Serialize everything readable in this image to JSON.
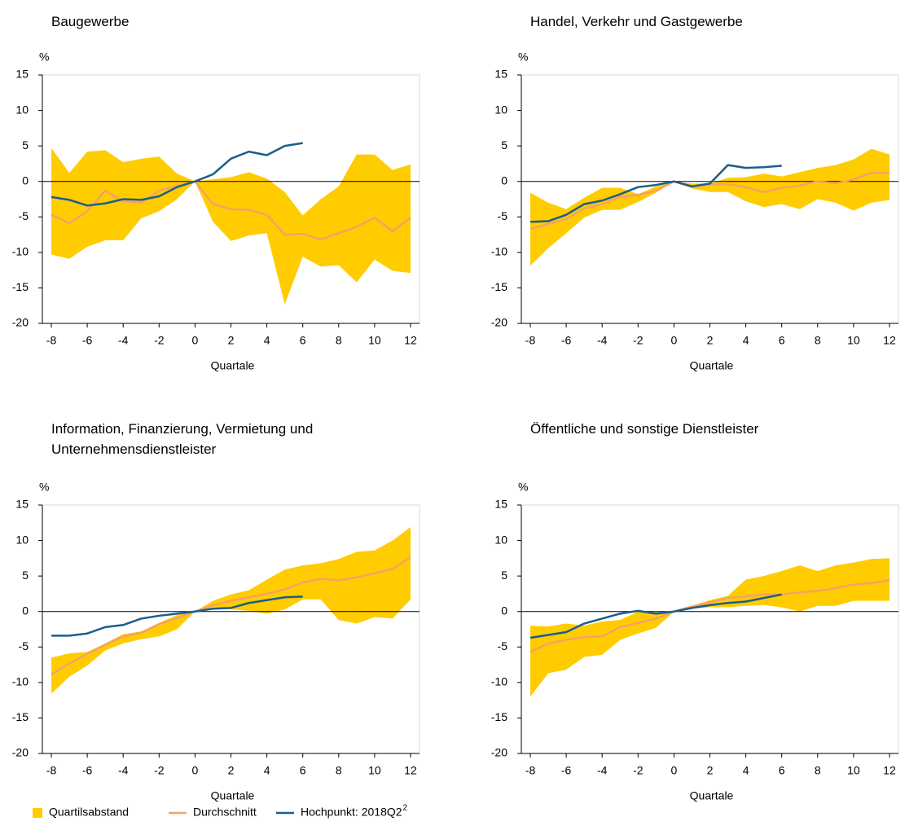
{
  "chart_data": [
    {
      "type": "band-line",
      "title": "Baugewerbe",
      "y_unit": "%",
      "xlabel": "Quartale",
      "x": [
        -8,
        -7,
        -6,
        -5,
        -4,
        -3,
        -2,
        -1,
        0,
        1,
        2,
        3,
        4,
        5,
        6,
        7,
        8,
        9,
        10,
        11,
        12
      ],
      "band": {
        "color": "#ffcc00",
        "upper": [
          4.7,
          1.2,
          4.2,
          4.4,
          2.7,
          3.2,
          3.5,
          1.1,
          0,
          0.3,
          0.6,
          1.3,
          0.4,
          -1.5,
          -4.8,
          -2.5,
          -0.7,
          3.8,
          3.8,
          1.6,
          2.4
        ],
        "lower": [
          -10.3,
          -10.9,
          -9.2,
          -8.3,
          -8.3,
          -5.2,
          -4.2,
          -2.5,
          0,
          -5.7,
          -8.4,
          -7.6,
          -7.3,
          -17.3,
          -10.6,
          -12,
          -11.8,
          -14.2,
          -11,
          -12.6,
          -12.9
        ]
      },
      "series": [
        {
          "color": "#f5a264",
          "values": [
            -4.7,
            -5.9,
            -4.2,
            -1.3,
            -2.8,
            -3.0,
            -1.3,
            -0.6,
            0,
            -3.2,
            -3.9,
            -4.0,
            -4.7,
            -7.5,
            -7.4,
            -8.2,
            -7.3,
            -6.4,
            -5.1,
            -7.0,
            -5.1
          ]
        },
        {
          "color": "#1b5e8c",
          "values": [
            -2.2,
            -2.6,
            -3.4,
            -3.1,
            -2.5,
            -2.6,
            -2.1,
            -0.8,
            0,
            1.0,
            3.2,
            4.2,
            3.7,
            5.0,
            5.4,
            null,
            null,
            null,
            null,
            null,
            null
          ]
        }
      ],
      "xlim": [
        -8.5,
        12.5
      ],
      "xticks": [
        -8,
        -6,
        -4,
        -2,
        0,
        2,
        4,
        6,
        8,
        10,
        12
      ],
      "ylim": [
        -20,
        15
      ],
      "yticks": [
        -20,
        -15,
        -10,
        -5,
        0,
        5,
        10,
        15
      ],
      "zero_line": true
    },
    {
      "type": "band-line",
      "title": "Handel, Verkehr und Gastgewerbe",
      "y_unit": "%",
      "xlabel": "Quartale",
      "x": [
        -8,
        -7,
        -6,
        -5,
        -4,
        -3,
        -2,
        -1,
        0,
        1,
        2,
        3,
        4,
        5,
        6,
        7,
        8,
        9,
        10,
        11,
        12
      ],
      "band": {
        "color": "#ffcc00",
        "upper": [
          -1.6,
          -3.0,
          -3.9,
          -2.3,
          -0.9,
          -0.9,
          -1.8,
          -0.7,
          0,
          -0.3,
          -0.3,
          0.5,
          0.6,
          1.1,
          0.7,
          1.3,
          1.9,
          2.3,
          3.1,
          4.6,
          3.8
        ],
        "lower": [
          -11.9,
          -9.4,
          -7.3,
          -5.1,
          -4.0,
          -4.0,
          -2.9,
          -1.6,
          0,
          -1.0,
          -1.5,
          -1.5,
          -2.8,
          -3.6,
          -3.2,
          -3.9,
          -2.5,
          -3.0,
          -4.1,
          -3.0,
          -2.6
        ]
      },
      "series": [
        {
          "color": "#f5a264",
          "values": [
            -6.7,
            -6.0,
            -5.3,
            -3.8,
            -3.2,
            -2.2,
            -1.9,
            -1.3,
            0,
            -0.8,
            -0.4,
            -0.4,
            -0.8,
            -1.5,
            -0.9,
            -0.6,
            0,
            -0.3,
            0.3,
            1.2,
            1.2
          ]
        },
        {
          "color": "#1b5e8c",
          "values": [
            -5.7,
            -5.6,
            -4.7,
            -3.2,
            -2.7,
            -1.8,
            -0.8,
            -0.5,
            0,
            -0.7,
            -0.3,
            2.3,
            1.9,
            2.0,
            2.2,
            null,
            null,
            null,
            null,
            null,
            null
          ]
        }
      ],
      "xlim": [
        -8.5,
        12.5
      ],
      "xticks": [
        -8,
        -6,
        -4,
        -2,
        0,
        2,
        4,
        6,
        8,
        10,
        12
      ],
      "ylim": [
        -20,
        15
      ],
      "yticks": [
        -20,
        -15,
        -10,
        -5,
        0,
        5,
        10,
        15
      ],
      "zero_line": true
    },
    {
      "type": "band-line",
      "title": "Information, Finanzierung, Vermietung und Unternehmensdienstleister",
      "y_unit": "%",
      "xlabel": "Quartale",
      "x": [
        -8,
        -7,
        -6,
        -5,
        -4,
        -3,
        -2,
        -1,
        0,
        1,
        2,
        3,
        4,
        5,
        6,
        7,
        8,
        9,
        10,
        11,
        12
      ],
      "band": {
        "color": "#ffcc00",
        "upper": [
          -6.5,
          -5.9,
          -5.7,
          -4.5,
          -3.2,
          -2.8,
          -1.6,
          -0.5,
          0,
          1.5,
          2.4,
          3.0,
          4.5,
          5.9,
          6.5,
          6.8,
          7.4,
          8.4,
          8.6,
          10.0,
          11.9
        ],
        "lower": [
          -11.6,
          -9.2,
          -7.6,
          -5.5,
          -4.5,
          -3.9,
          -3.5,
          -2.5,
          0,
          0.6,
          0.3,
          0.1,
          -0.3,
          0.3,
          1.7,
          1.7,
          -1.2,
          -1.7,
          -0.8,
          -1.0,
          1.7
        ]
      },
      "series": [
        {
          "color": "#f5a264",
          "values": [
            -8.9,
            -7.3,
            -6.0,
            -4.7,
            -3.5,
            -3.0,
            -1.8,
            -0.9,
            0,
            0.9,
            1.5,
            2.0,
            2.5,
            3.1,
            4.1,
            4.6,
            4.4,
            4.8,
            5.4,
            6.0,
            7.6
          ]
        },
        {
          "color": "#1b5e8c",
          "values": [
            -3.4,
            -3.4,
            -3.1,
            -2.2,
            -1.9,
            -1.0,
            -0.6,
            -0.3,
            0,
            0.4,
            0.5,
            1.2,
            1.6,
            2.0,
            2.1,
            null,
            null,
            null,
            null,
            null,
            null
          ]
        }
      ],
      "xlim": [
        -8.5,
        12.5
      ],
      "xticks": [
        -8,
        -6,
        -4,
        -2,
        0,
        2,
        4,
        6,
        8,
        10,
        12
      ],
      "ylim": [
        -20,
        15
      ],
      "yticks": [
        -20,
        -15,
        -10,
        -5,
        0,
        5,
        10,
        15
      ],
      "zero_line": true
    },
    {
      "type": "band-line",
      "title": "Öffentliche und sonstige Dienstleister",
      "y_unit": "%",
      "xlabel": "Quartale",
      "x": [
        -8,
        -7,
        -6,
        -5,
        -4,
        -3,
        -2,
        -1,
        0,
        1,
        2,
        3,
        4,
        5,
        6,
        7,
        8,
        9,
        10,
        11,
        12
      ],
      "band": {
        "color": "#ffcc00",
        "upper": [
          -2.0,
          -2.1,
          -1.7,
          -2.0,
          -1.4,
          -1.2,
          0.0,
          -0.1,
          0,
          0.8,
          1.6,
          2.2,
          4.5,
          5.0,
          5.7,
          6.5,
          5.7,
          6.5,
          6.9,
          7.4,
          7.5
        ],
        "lower": [
          -12.0,
          -8.7,
          -8.2,
          -6.4,
          -6.1,
          -4.0,
          -3.1,
          -2.3,
          0,
          0.4,
          0.6,
          0.6,
          0.8,
          0.9,
          0.6,
          0,
          0.8,
          0.8,
          1.5,
          1.5,
          1.5
        ]
      },
      "series": [
        {
          "color": "#f5a264",
          "values": [
            -5.7,
            -4.5,
            -4.0,
            -3.6,
            -3.5,
            -2.2,
            -1.6,
            -1.0,
            0,
            0.7,
            1.3,
            1.9,
            2.1,
            2.4,
            2.4,
            2.7,
            2.9,
            3.3,
            3.8,
            4.0,
            4.4
          ]
        },
        {
          "color": "#1b5e8c",
          "values": [
            -3.7,
            -3.3,
            -2.9,
            -1.7,
            -1.0,
            -0.3,
            0.1,
            -0.3,
            0,
            0.5,
            0.9,
            1.2,
            1.4,
            1.9,
            2.4,
            null,
            null,
            null,
            null,
            null,
            null
          ]
        }
      ],
      "xlim": [
        -8.5,
        12.5
      ],
      "xticks": [
        -8,
        -6,
        -4,
        -2,
        0,
        2,
        4,
        6,
        8,
        10,
        12
      ],
      "ylim": [
        -20,
        15
      ],
      "yticks": [
        -20,
        -15,
        -10,
        -5,
        0,
        5,
        10,
        15
      ],
      "zero_line": true
    }
  ],
  "legend": {
    "items": [
      "Quartilsabstand",
      "Durchschnitt",
      "Hochpunkt: 2018Q2"
    ],
    "footnote_mark": "2"
  }
}
